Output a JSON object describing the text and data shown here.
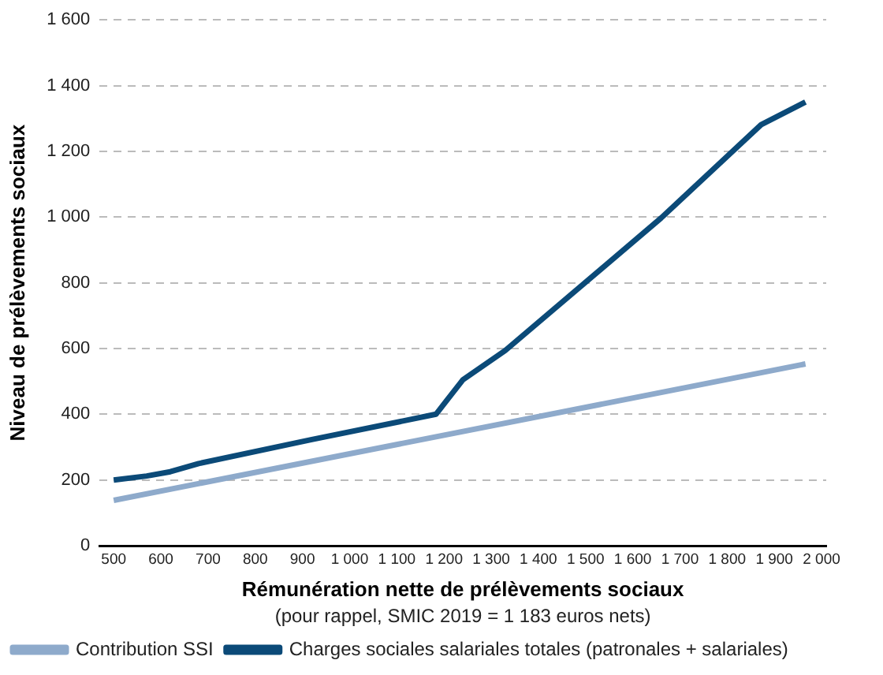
{
  "chart_data": {
    "type": "line",
    "xlabel": "Rémunération nette de prélèvements sociaux",
    "ylabel": "Niveau de prélèvements sociaux",
    "annotations": [
      "(pour rappel, SMIC 2019 = 1 183 euros nets)"
    ],
    "xlim": [
      470,
      2010
    ],
    "xticks": [
      500,
      600,
      700,
      800,
      900,
      {
        "value": 1000,
        "label": "1 000"
      },
      {
        "value": 1100,
        "label": "1 100"
      },
      {
        "value": 1200,
        "label": "1 200"
      },
      {
        "value": 1300,
        "label": "1 300"
      },
      {
        "value": 1400,
        "label": "1 400"
      },
      {
        "value": 1500,
        "label": "1 500"
      },
      {
        "value": 1600,
        "label": "1 600"
      },
      {
        "value": 1700,
        "label": "1 700"
      },
      {
        "value": 1800,
        "label": "1 800"
      },
      {
        "value": 1900,
        "label": "1 900"
      },
      {
        "value": 2000,
        "label": "2 000"
      }
    ],
    "ylim": [
      0,
      1600
    ],
    "yticks": [
      0,
      200,
      400,
      600,
      800,
      {
        "value": 1000,
        "label": "1 000"
      },
      {
        "value": 1200,
        "label": "1 200"
      },
      {
        "value": 1400,
        "label": "1 400"
      },
      {
        "value": 1600,
        "label": "1 600"
      }
    ],
    "series": [
      {
        "name": "Contribution SSI",
        "color": "#8eaacb",
        "x": [
          500,
          1966
        ],
        "values": [
          138,
          553
        ]
      },
      {
        "name": "Charges sociales salariales totales (patronales + salariales)",
        "color": "#0b4a78",
        "x": [
          500,
          570,
          620,
          680,
          920,
          1183,
          1240,
          1330,
          1660,
          1872,
          1966
        ],
        "values": [
          200,
          212,
          225,
          250,
          323,
          400,
          505,
          594,
          997,
          1281,
          1350
        ]
      }
    ],
    "grid": "y",
    "legend": "bottom",
    "marker": "none",
    "line_style": "solid"
  }
}
